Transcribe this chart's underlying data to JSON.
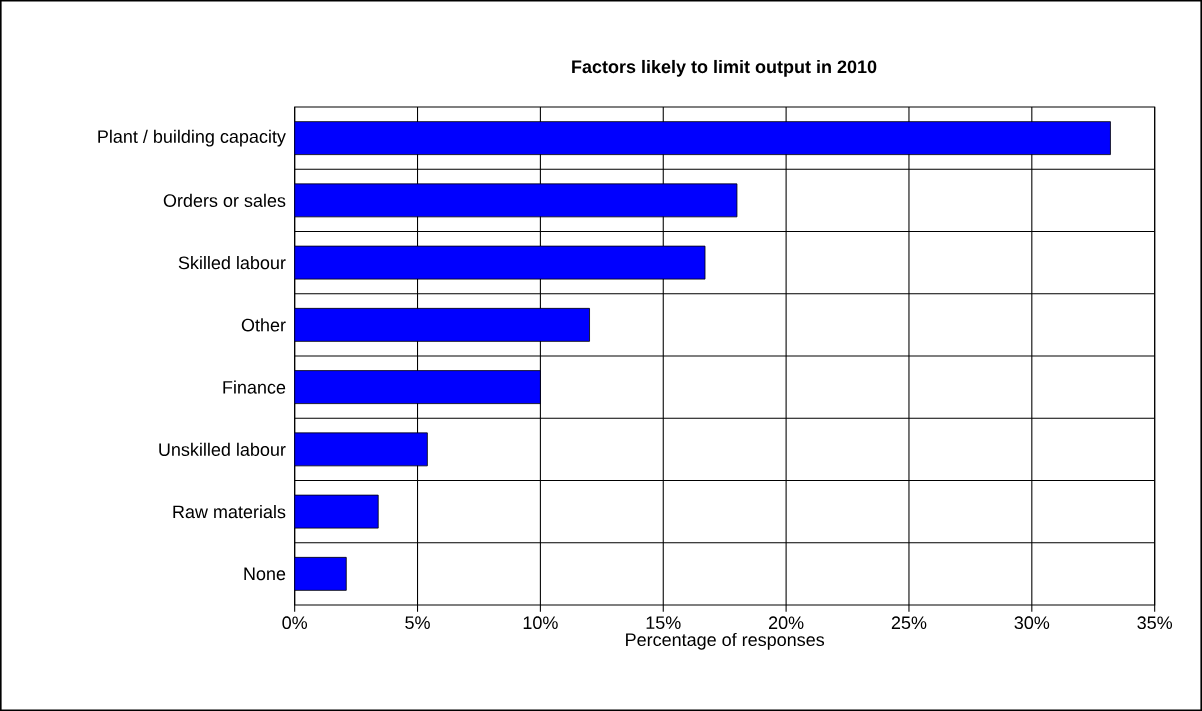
{
  "chart_data": {
    "type": "bar",
    "orientation": "horizontal",
    "title": "Factors likely to limit output in 2010",
    "xlabel": "Percentage of responses",
    "categories": [
      "Plant / building capacity",
      "Orders or sales",
      "Skilled labour",
      "Other",
      "Finance",
      "Unskilled labour",
      "Raw materials",
      "None"
    ],
    "values": [
      33.2,
      18.0,
      16.7,
      12.0,
      10.0,
      5.4,
      3.4,
      2.1
    ],
    "color": "#0000ff",
    "xlim": [
      0,
      35
    ],
    "xticks": [
      {
        "value": 0,
        "label": "0%"
      },
      {
        "value": 5,
        "label": "5%"
      },
      {
        "value": 10,
        "label": "10%"
      },
      {
        "value": 15,
        "label": "15%"
      },
      {
        "value": 20,
        "label": "20%"
      },
      {
        "value": 25,
        "label": "25%"
      },
      {
        "value": 30,
        "label": "30%"
      },
      {
        "value": 35,
        "label": "35%"
      }
    ],
    "grid": true
  }
}
